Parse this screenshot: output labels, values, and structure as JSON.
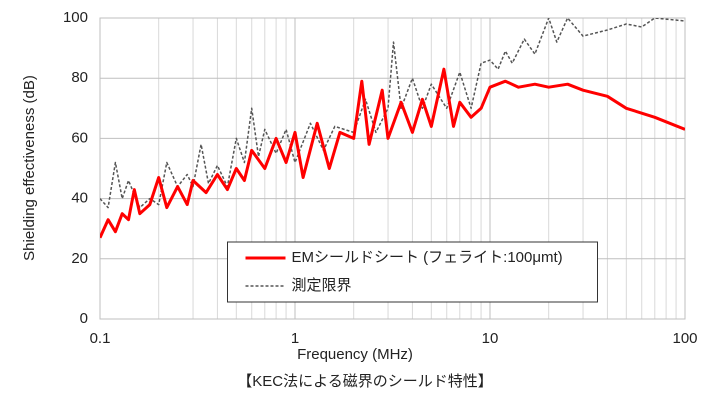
{
  "chart_data": {
    "type": "line",
    "xlabel": "Frequency (MHz)",
    "ylabel": "Shielding effectiveness (dB)",
    "caption": "【KEC法による磁界のシールド特性】",
    "xscale": "log",
    "xlim": [
      0.1,
      100
    ],
    "xticks": [
      0.1,
      1,
      10,
      100
    ],
    "ylim": [
      0,
      100
    ],
    "yticks": [
      0,
      20,
      40,
      60,
      80,
      100
    ],
    "grid": true,
    "legend_loc": "lower center",
    "series": [
      {
        "name": "EMシールドシート (フェライト:100μmt)",
        "color": "#ff0000",
        "dash": "solid",
        "x": [
          0.1,
          0.11,
          0.12,
          0.13,
          0.14,
          0.15,
          0.16,
          0.18,
          0.2,
          0.22,
          0.25,
          0.28,
          0.3,
          0.35,
          0.4,
          0.45,
          0.5,
          0.55,
          0.6,
          0.7,
          0.8,
          0.9,
          1.0,
          1.1,
          1.3,
          1.5,
          1.7,
          2,
          2.2,
          2.4,
          2.8,
          3,
          3.5,
          4,
          4.5,
          5,
          5.8,
          6.5,
          7,
          8,
          9,
          10,
          12,
          14,
          17,
          20,
          25,
          30,
          40,
          50,
          70,
          100
        ],
        "values": [
          27,
          33,
          29,
          35,
          33,
          43,
          35,
          38,
          47,
          37,
          44,
          38,
          46,
          42,
          48,
          43,
          50,
          46,
          56,
          50,
          60,
          52,
          62,
          47,
          65,
          50,
          62,
          60,
          79,
          58,
          76,
          60,
          72,
          62,
          73,
          64,
          83,
          64,
          72,
          67,
          70,
          77,
          79,
          77,
          78,
          77,
          78,
          76,
          74,
          70,
          67,
          63
        ]
      },
      {
        "name": "測定限界",
        "color": "#555555",
        "dash": "dashed",
        "x": [
          0.1,
          0.11,
          0.12,
          0.13,
          0.14,
          0.16,
          0.18,
          0.2,
          0.22,
          0.25,
          0.28,
          0.3,
          0.33,
          0.36,
          0.4,
          0.45,
          0.5,
          0.55,
          0.6,
          0.65,
          0.7,
          0.8,
          0.9,
          1,
          1.2,
          1.4,
          1.6,
          2,
          2.3,
          2.6,
          3,
          3.2,
          3.5,
          4,
          4.5,
          5,
          6,
          7,
          8,
          9,
          10,
          11,
          12,
          13,
          15,
          17,
          20,
          22,
          25,
          30,
          40,
          50,
          60,
          70,
          100
        ],
        "values": [
          40,
          37,
          52,
          40,
          46,
          37,
          40,
          38,
          52,
          44,
          48,
          44,
          58,
          45,
          51,
          44,
          60,
          52,
          70,
          54,
          63,
          55,
          63,
          52,
          65,
          56,
          64,
          62,
          73,
          62,
          70,
          92,
          70,
          80,
          70,
          78,
          70,
          82,
          70,
          85,
          86,
          83,
          89,
          85,
          93,
          88,
          100,
          92,
          100,
          94,
          96,
          98,
          97,
          100,
          99
        ]
      }
    ]
  }
}
